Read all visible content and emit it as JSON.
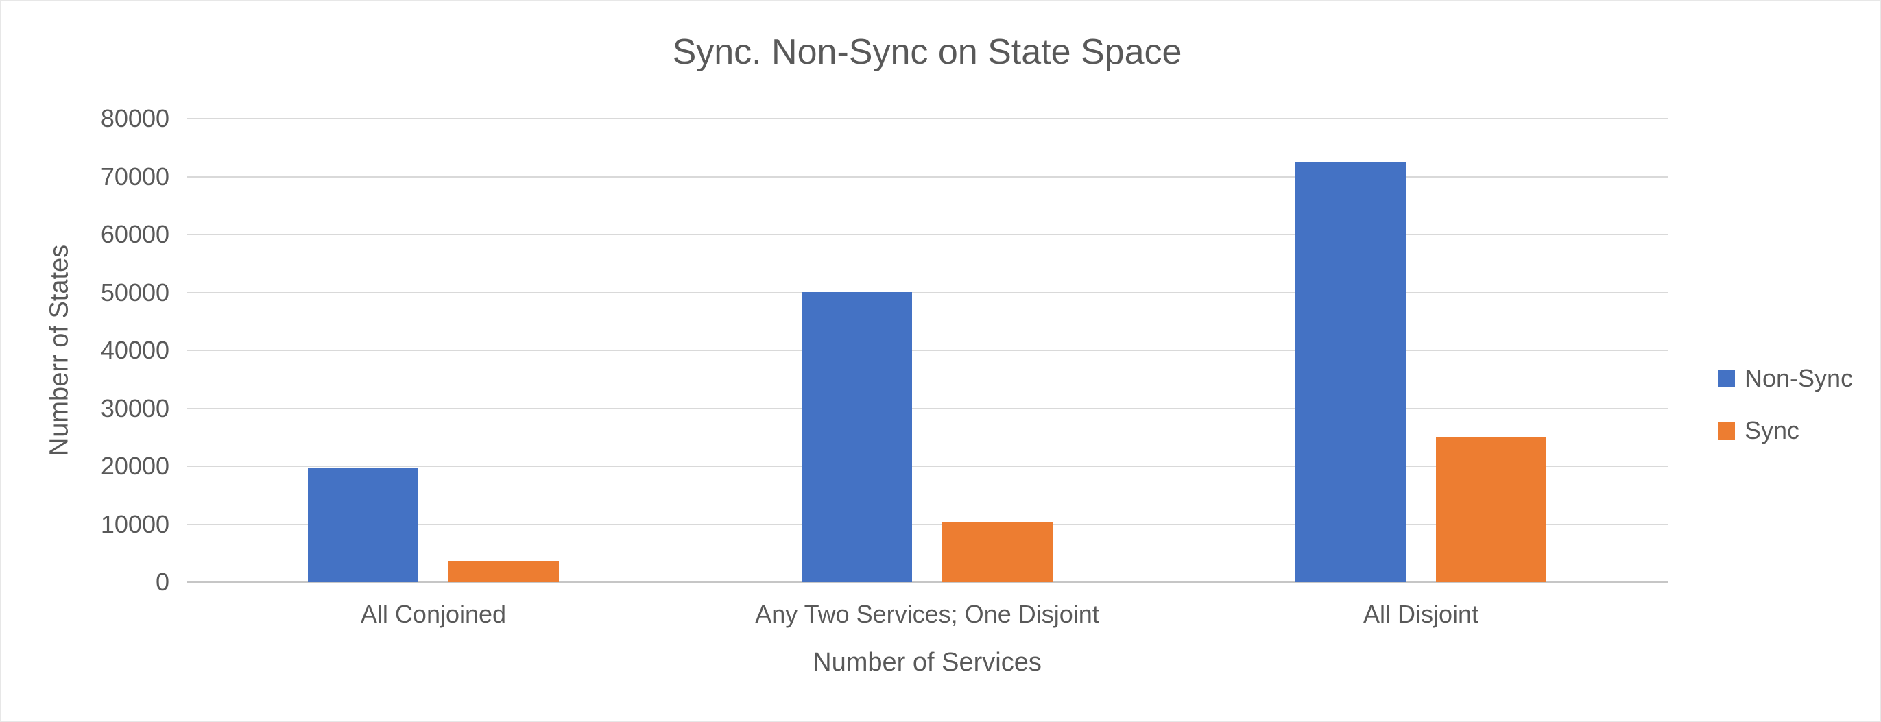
{
  "chart": {
    "title": "Sync. Non-Sync on State Space",
    "x_axis_title": "Number of Services",
    "y_axis_title": "Numberr of States",
    "colors": {
      "non_sync": "#4472C4",
      "sync": "#ED7D31",
      "text": "#595959",
      "gridline": "#D9D9D9"
    }
  },
  "chart_data": {
    "type": "bar",
    "title": "Sync. Non-Sync on State Space",
    "xlabel": "Number of Services",
    "ylabel": "Numberr of States",
    "categories": [
      "All Conjoined",
      "Any Two Services; One Disjoint",
      "All Disjoint"
    ],
    "series": [
      {
        "name": "Non-Sync",
        "color": "#4472C4",
        "values": [
          19600,
          50000,
          72500
        ]
      },
      {
        "name": "Sync",
        "color": "#ED7D31",
        "values": [
          3650,
          10400,
          25100
        ]
      }
    ],
    "ylim": [
      0,
      80000
    ],
    "ytick_step": 10000,
    "ytick_labels": [
      "0",
      "10000",
      "20000",
      "30000",
      "40000",
      "50000",
      "60000",
      "70000",
      "80000"
    ],
    "grid": true,
    "legend_position": "right",
    "legend": [
      "Non-Sync",
      "Sync"
    ]
  }
}
